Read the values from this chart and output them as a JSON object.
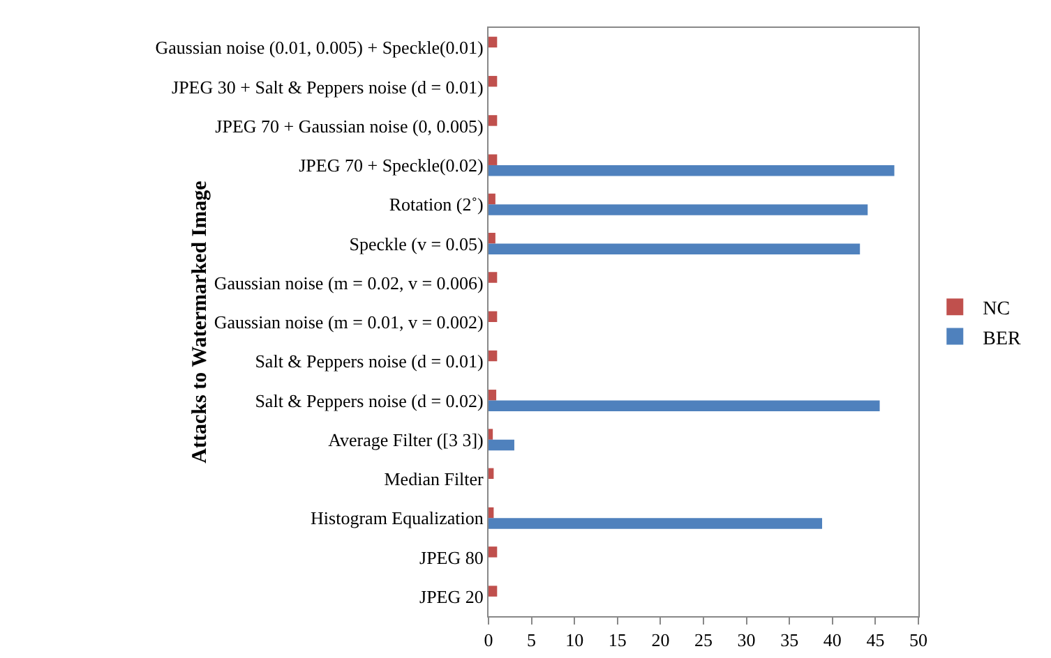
{
  "chart_data": {
    "type": "bar",
    "orientation": "horizontal",
    "ylabel": "Attacks to Watermarked Image",
    "categories": [
      "Gaussian noise (0.01, 0.005) + Speckle(0.01)",
      "JPEG 30 + Salt & Peppers noise (d = 0.01)",
      "JPEG 70 + Gaussian noise (0, 0.005)",
      "JPEG 70 + Speckle(0.02)",
      "Rotation (2˚)",
      "Speckle (v = 0.05)",
      "Gaussian noise (m = 0.02, v = 0.006)",
      "Gaussian noise (m = 0.01, v = 0.002)",
      "Salt & Peppers noise (d = 0.01)",
      "Salt & Peppers noise (d = 0.02)",
      "Average Filter ([3 3])",
      "Median Filter",
      "Histogram Equalization",
      "JPEG 80",
      "JPEG 20"
    ],
    "series": [
      {
        "name": "NC",
        "color": "#c0504d",
        "values": [
          1,
          1,
          1,
          1,
          0.8,
          0.8,
          1,
          1,
          1,
          0.9,
          0.5,
          0.6,
          0.6,
          1,
          1
        ]
      },
      {
        "name": "BER",
        "color": "#4f81bd",
        "values": [
          0,
          0,
          0,
          47.2,
          44.1,
          43.2,
          0,
          0,
          0,
          45.5,
          3,
          0,
          38.8,
          0,
          0
        ]
      }
    ],
    "xlim": [
      0,
      50
    ],
    "xticks": [
      0,
      5,
      10,
      15,
      20,
      25,
      30,
      35,
      40,
      45,
      50
    ],
    "grid": false,
    "legend": "right"
  }
}
